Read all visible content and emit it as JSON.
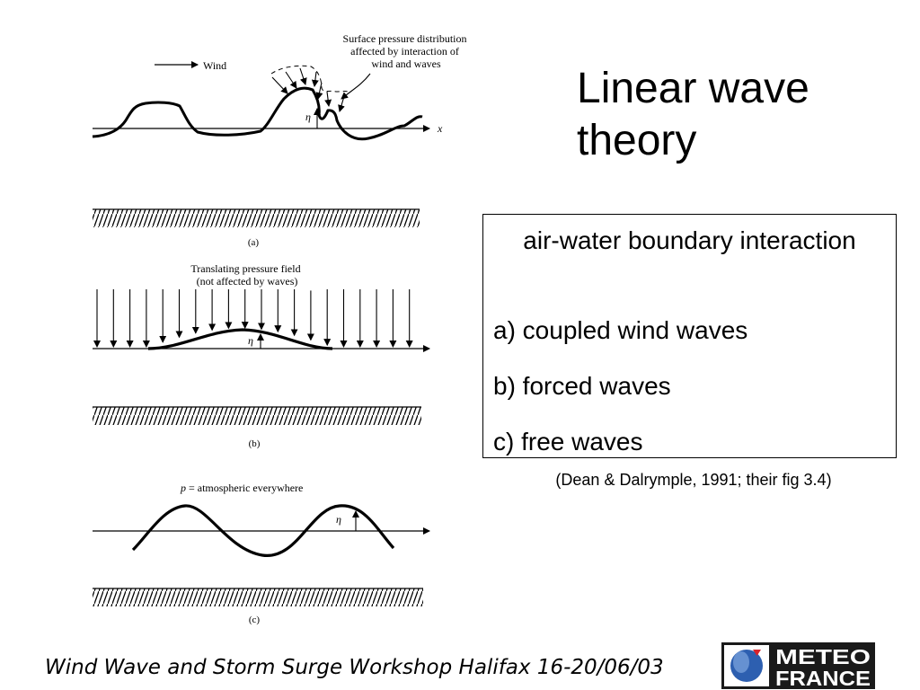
{
  "slide": {
    "title": "Linear wave theory",
    "box": {
      "heading": "air-water boundary interaction",
      "items": [
        "a) coupled wind waves",
        "b) forced waves",
        "c) free waves"
      ]
    },
    "citation": "(Dean & Dalrymple, 1991; their fig 3.4)",
    "footer": "Wind Wave and Storm Surge Workshop Halifax 16-20/06/03"
  },
  "figure": {
    "panel_a": {
      "wind_label": "Wind",
      "annotation": [
        "Surface pressure distribution",
        "affected by interaction of",
        "wind and waves"
      ],
      "axis_label": "x",
      "eta_label": "η",
      "caption": "(a)"
    },
    "panel_b": {
      "annotation": [
        "Translating pressure field",
        "(not affected by waves)"
      ],
      "eta_label": "η",
      "caption": "(b)"
    },
    "panel_c": {
      "annotation_p": "p",
      "annotation_rest": " = atmospheric everywhere",
      "eta_label": "η",
      "caption": "(c)"
    }
  },
  "logo": {
    "line1": "METEO",
    "line2": "FRANCE",
    "colors": {
      "background": "#1a1a1a",
      "globe": "#2d5fb0",
      "accent": "#d8242c",
      "text": "#ffffff"
    }
  }
}
